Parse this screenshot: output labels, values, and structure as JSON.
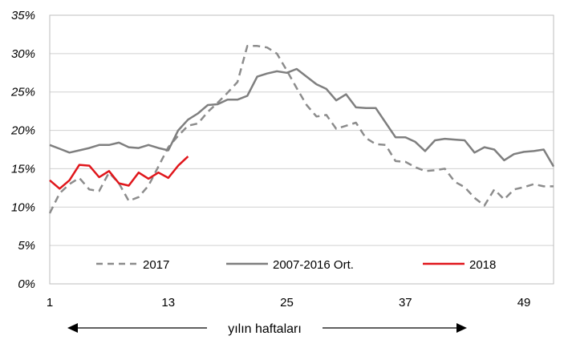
{
  "chart_data": {
    "type": "line",
    "xlabel": "yılın haftaları",
    "x_ticks": [
      1,
      13,
      25,
      37,
      49
    ],
    "x_range": [
      1,
      52
    ],
    "y_ticks": [
      "0%",
      "5%",
      "10%",
      "15%",
      "20%",
      "25%",
      "30%",
      "35%"
    ],
    "y_values": [
      0,
      5,
      10,
      15,
      20,
      25,
      30,
      35
    ],
    "ylim": [
      0,
      35
    ],
    "grid": "horizontal",
    "legend_position": "bottom-inside",
    "series": [
      {
        "name": "2017",
        "style": "dashed",
        "color": "#8c8c8c",
        "x": [
          1,
          2,
          3,
          4,
          5,
          6,
          7,
          8,
          9,
          10,
          11,
          12,
          13,
          14,
          15,
          16,
          17,
          18,
          19,
          20,
          21,
          22,
          23,
          24,
          25,
          26,
          27,
          28,
          29,
          30,
          31,
          32,
          33,
          34,
          35,
          36,
          37,
          38,
          39,
          40,
          41,
          42,
          43,
          44,
          45,
          46,
          47,
          48,
          49,
          50,
          51,
          52
        ],
        "values": [
          9.2,
          11.8,
          13.0,
          13.8,
          12.3,
          12.1,
          14.5,
          13.1,
          10.8,
          11.3,
          12.8,
          15.3,
          17.8,
          19.3,
          20.6,
          20.9,
          22.4,
          23.6,
          24.9,
          26.3,
          31.0,
          31.0,
          30.8,
          30.0,
          27.8,
          25.5,
          23.3,
          21.8,
          22.0,
          20.2,
          20.6,
          21.0,
          19.0,
          18.2,
          18.1,
          16.0,
          15.9,
          15.2,
          14.7,
          14.8,
          15.0,
          13.3,
          12.6,
          11.2,
          10.2,
          12.3,
          11.0,
          12.3,
          12.6,
          13.0,
          12.7,
          12.7
        ]
      },
      {
        "name": "2007-2016 Ort.",
        "style": "solid",
        "color": "#7f7f7f",
        "x": [
          1,
          2,
          3,
          4,
          5,
          6,
          7,
          8,
          9,
          10,
          11,
          12,
          13,
          14,
          15,
          16,
          17,
          18,
          19,
          20,
          21,
          22,
          23,
          24,
          25,
          26,
          27,
          28,
          29,
          30,
          31,
          32,
          33,
          34,
          35,
          36,
          37,
          38,
          39,
          40,
          41,
          42,
          43,
          44,
          45,
          46,
          47,
          48,
          49,
          50,
          51,
          52
        ],
        "values": [
          18.1,
          17.6,
          17.1,
          17.4,
          17.7,
          18.1,
          18.1,
          18.4,
          17.8,
          17.7,
          18.1,
          17.7,
          17.4,
          20.0,
          21.4,
          22.2,
          23.3,
          23.4,
          24.0,
          24.0,
          24.5,
          27.0,
          27.4,
          27.7,
          27.5,
          28.0,
          27.0,
          26.0,
          25.4,
          23.9,
          24.7,
          23.0,
          22.9,
          22.9,
          21.0,
          19.1,
          19.1,
          18.5,
          17.3,
          18.7,
          18.9,
          18.8,
          18.7,
          17.1,
          17.8,
          17.5,
          16.1,
          16.9,
          17.2,
          17.3,
          17.5,
          15.3
        ]
      },
      {
        "name": "2018",
        "style": "solid",
        "color": "#e0161b",
        "x": [
          1,
          2,
          3,
          4,
          5,
          6,
          7,
          8,
          9,
          10,
          11,
          12,
          13,
          14,
          15
        ],
        "values": [
          13.5,
          12.4,
          13.5,
          15.5,
          15.4,
          13.9,
          14.7,
          13.1,
          12.8,
          14.5,
          13.7,
          14.5,
          13.8,
          15.4,
          16.6
        ]
      }
    ]
  }
}
